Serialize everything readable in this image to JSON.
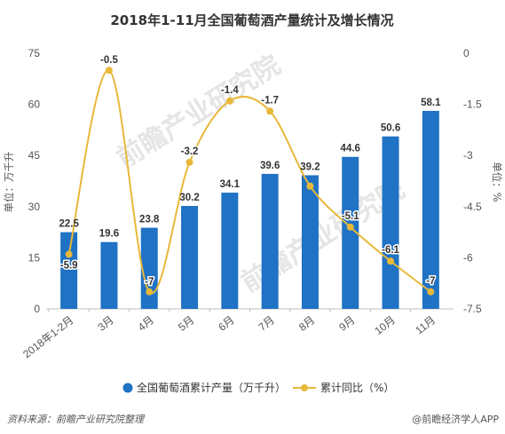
{
  "chart_data": {
    "type": "bar+line",
    "title": "2018年1-11月全国葡萄酒产量统计及增长情况",
    "categories": [
      "2018年1-2月",
      "3月",
      "4月",
      "5月",
      "6月",
      "7月",
      "8月",
      "9月",
      "10月",
      "11月"
    ],
    "series": [
      {
        "name": "全国葡萄酒累计产量（万千升）",
        "type": "bar",
        "axis": "left",
        "color": "#1f72c4",
        "values": [
          22.5,
          19.6,
          23.8,
          30.2,
          34.1,
          39.6,
          39.2,
          44.6,
          50.6,
          58.1
        ]
      },
      {
        "name": "累计同比（%）",
        "type": "line",
        "axis": "right",
        "color": "#e8b83a",
        "values": [
          -5.9,
          -0.5,
          -7,
          -3.2,
          -1.4,
          -1.7,
          -3.9,
          -5.1,
          -6.1,
          -7
        ],
        "labels": [
          "-5.9",
          "-0.5",
          "-7",
          "-3.2",
          "-1.4",
          "-1.7",
          "",
          "-5.1",
          "-6.1",
          "-7"
        ]
      }
    ],
    "ylabel_left": "单位：万千升",
    "ylabel_right": "单位：%",
    "ylim_left": [
      0,
      75
    ],
    "yticks_left": [
      "0",
      "15",
      "30",
      "45",
      "60",
      "75"
    ],
    "ylim_right": [
      -7.5,
      0
    ],
    "yticks_right": [
      "-7.5",
      "-6",
      "-4.5",
      "-3",
      "-1.5",
      "0"
    ],
    "grid": false,
    "legend_position": "bottom"
  },
  "footer": {
    "source": "资料来源：前瞻产业研究院整理",
    "brand": "@前瞻经济学人APP"
  },
  "watermark": {
    "text": "前瞻产业研究院"
  }
}
